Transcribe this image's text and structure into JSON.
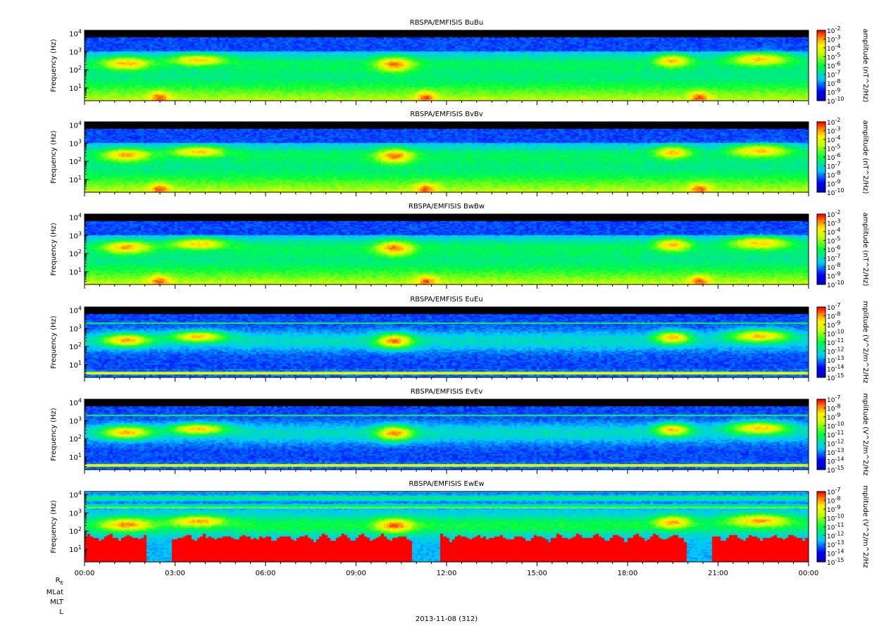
{
  "chart_data": [
    {
      "type": "heatmap",
      "title": "RBSPA/EMFISIS  BuBu",
      "ylabel": "Frequency (Hz)",
      "yscale": "log",
      "ylim": [
        2,
        15000
      ],
      "yticks": [
        "10^1",
        "10^2",
        "10^3",
        "10^4"
      ],
      "colorbar_label": "amplitude (nT^2/Hz)",
      "colorbar_ticks": [
        "10^-2",
        "10^-3",
        "10^-4",
        "10^-5",
        "10^-6",
        "10^-7",
        "10^-8",
        "10^-9",
        "10^-10"
      ],
      "colorbar_range": [
        -10,
        -2
      ],
      "kind": "B"
    },
    {
      "type": "heatmap",
      "title": "RBSPA/EMFISIS  BvBv",
      "ylabel": "Frequency (Hz)",
      "yscale": "log",
      "ylim": [
        2,
        15000
      ],
      "yticks": [
        "10^1",
        "10^2",
        "10^3",
        "10^4"
      ],
      "colorbar_label": "amplitude (nT^2/Hz)",
      "colorbar_ticks": [
        "10^-2",
        "10^-3",
        "10^-4",
        "10^-5",
        "10^-6",
        "10^-7",
        "10^-8",
        "10^-9",
        "10^-10"
      ],
      "colorbar_range": [
        -10,
        -2
      ],
      "kind": "B"
    },
    {
      "type": "heatmap",
      "title": "RBSPA/EMFISIS  BwBw",
      "ylabel": "Frequency (Hz)",
      "yscale": "log",
      "ylim": [
        2,
        15000
      ],
      "yticks": [
        "10^1",
        "10^2",
        "10^3",
        "10^4"
      ],
      "colorbar_label": "amplitude (nT^2/Hz)",
      "colorbar_ticks": [
        "10^-2",
        "10^-3",
        "10^-4",
        "10^-5",
        "10^-6",
        "10^-7",
        "10^-8",
        "10^-9",
        "10^-10"
      ],
      "colorbar_range": [
        -10,
        -2
      ],
      "kind": "B"
    },
    {
      "type": "heatmap",
      "title": "RBSPA/EMFISIS  EuEu",
      "ylabel": "Frequency (Hz)",
      "yscale": "log",
      "ylim": [
        2,
        15000
      ],
      "yticks": [
        "10^1",
        "10^2",
        "10^3",
        "10^4"
      ],
      "colorbar_label": "mplitude (V^2/m^2/Hz",
      "colorbar_ticks": [
        "10^-7",
        "10^-8",
        "10^-9",
        "10^-10",
        "10^-11",
        "10^-12",
        "10^-13",
        "10^-14",
        "10^-15"
      ],
      "colorbar_range": [
        -15,
        -7
      ],
      "kind": "E"
    },
    {
      "type": "heatmap",
      "title": "RBSPA/EMFISIS  EvEv",
      "ylabel": "Frequency (Hz)",
      "yscale": "log",
      "ylim": [
        2,
        15000
      ],
      "yticks": [
        "10^1",
        "10^2",
        "10^3",
        "10^4"
      ],
      "colorbar_label": "mplitude (V^2/m^2/Hz",
      "colorbar_ticks": [
        "10^-7",
        "10^-8",
        "10^-9",
        "10^-10",
        "10^-11",
        "10^-12",
        "10^-13",
        "10^-14",
        "10^-15"
      ],
      "colorbar_range": [
        -15,
        -7
      ],
      "kind": "E"
    },
    {
      "type": "heatmap",
      "title": "RBSPA/EMFISIS  EwEw",
      "ylabel": "Frequency (Hz)",
      "yscale": "log",
      "ylim": [
        2,
        15000
      ],
      "yticks": [
        "10^1",
        "10^2",
        "10^3",
        "10^4"
      ],
      "colorbar_label": "mplitude (V^2/m^2/Hz",
      "colorbar_ticks": [
        "10^-7",
        "10^-8",
        "10^-9",
        "10^-10",
        "10^-11",
        "10^-12",
        "10^-13",
        "10^-14",
        "10^-15"
      ],
      "colorbar_range": [
        -15,
        -7
      ],
      "kind": "Ew"
    }
  ],
  "x_axis": {
    "ticks": [
      "00:00",
      "03:00",
      "06:00",
      "09:00",
      "12:00",
      "15:00",
      "18:00",
      "21:00",
      "00:00"
    ],
    "range_hours": [
      0,
      24
    ]
  },
  "orbit_labels": [
    "R_E",
    "MLat",
    "MLT",
    "L"
  ],
  "date_label": "2013-11-08 (312)",
  "colors": {
    "black": "#000000",
    "blue": "#0000ff",
    "cyan": "#00d8ff",
    "green": "#00ff40",
    "yellow": "#ffff00",
    "red": "#ff0000"
  }
}
